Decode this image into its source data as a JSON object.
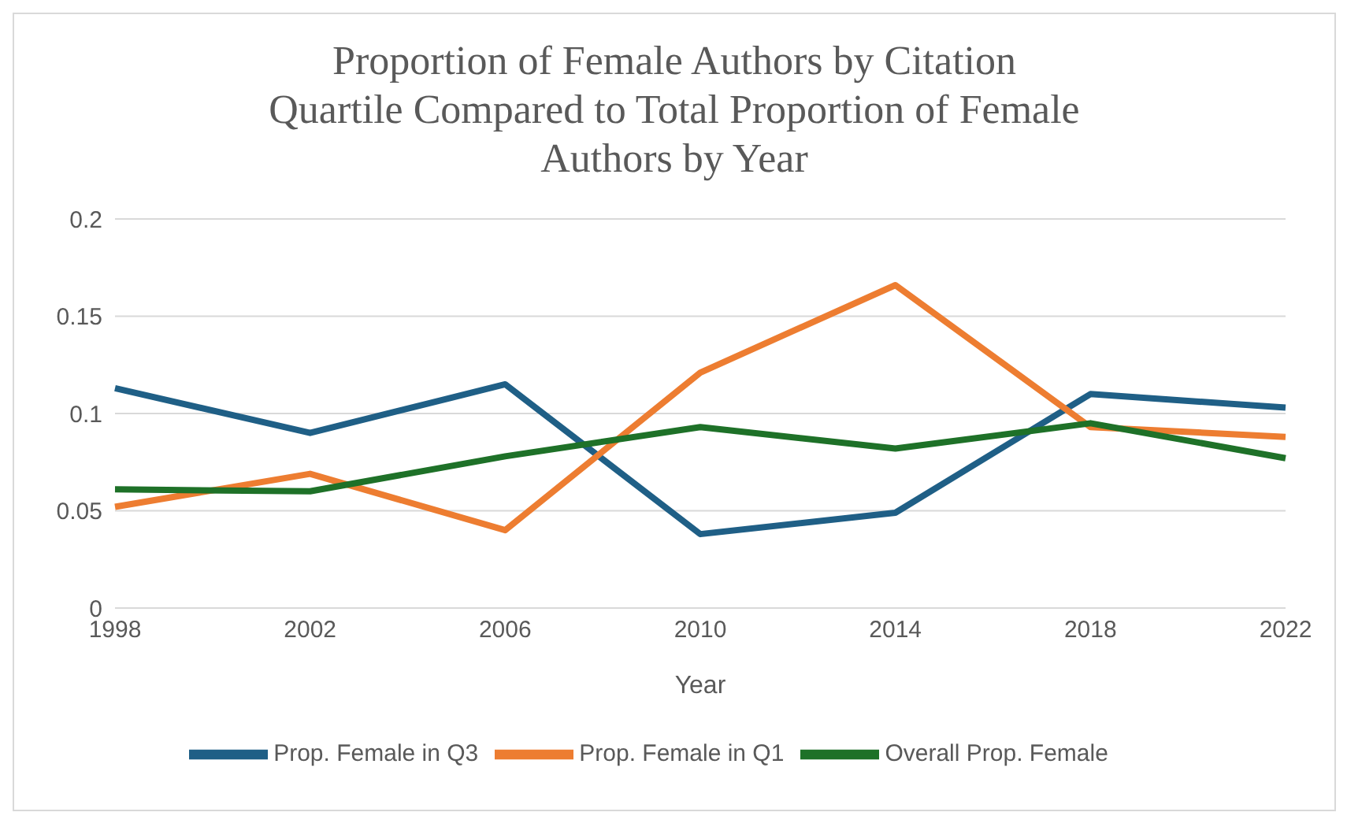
{
  "chart_data": {
    "type": "line",
    "title": "Proportion of Female Authors by Citation Quartile Compared to Total Proportion of Female Authors by Year",
    "xlabel": "Year",
    "categories": [
      "1998",
      "2002",
      "2006",
      "2010",
      "2014",
      "2018",
      "2022"
    ],
    "series": [
      {
        "name": "Prop. Female in Q3",
        "color": "#1f5f86",
        "values": [
          0.113,
          0.09,
          0.115,
          0.038,
          0.049,
          0.11,
          0.103
        ]
      },
      {
        "name": "Prop. Female in Q1",
        "color": "#ed7d31",
        "values": [
          0.052,
          0.069,
          0.04,
          0.121,
          0.166,
          0.093,
          0.088
        ]
      },
      {
        "name": "Overall Prop. Female",
        "color": "#1e7128",
        "values": [
          0.061,
          0.06,
          0.078,
          0.093,
          0.082,
          0.095,
          0.077
        ]
      }
    ],
    "ylim": [
      0,
      0.2
    ],
    "yticks": [
      0,
      0.05,
      0.1,
      0.15,
      0.2
    ],
    "grid": "y",
    "legend": "bottom",
    "marker": "none",
    "line_style": "solid"
  }
}
